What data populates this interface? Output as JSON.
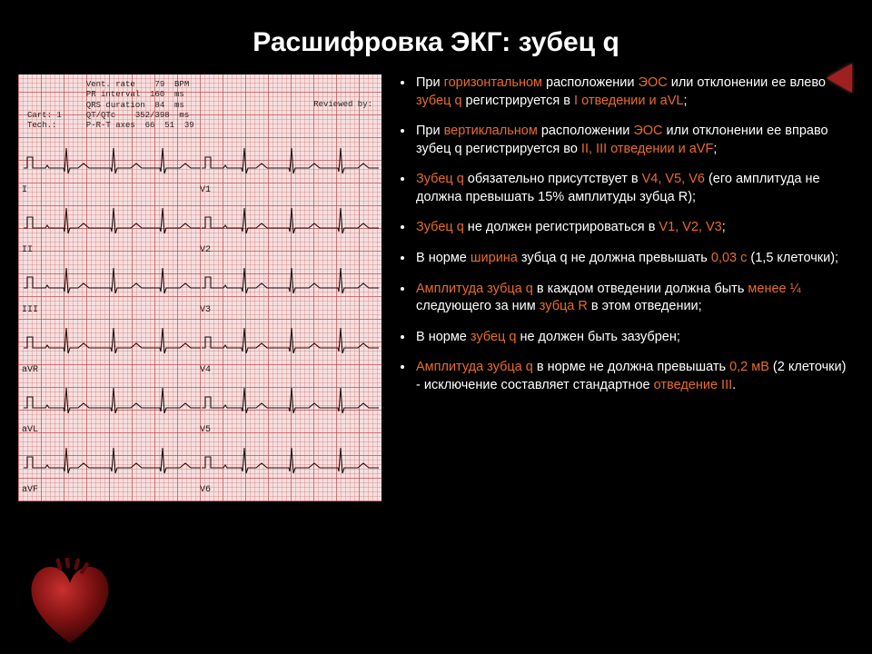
{
  "title": "Расшифровка ЭКГ: зубец q",
  "ecg": {
    "header_lines": [
      "            Vent. rate    79  BPM",
      "            PR interval  160  ms",
      "            QRS duration  84  ms",
      "Cart: 1     QT/QTc    352/398  ms",
      "Tech.:      P-R-T axes  66  51  39"
    ],
    "reviewed": "Reviewed by:",
    "rows": [
      {
        "left": "I",
        "right": "V1"
      },
      {
        "left": "II",
        "right": "V2"
      },
      {
        "left": "III",
        "right": "V3"
      },
      {
        "left": "aVR",
        "right": "V4"
      },
      {
        "left": "aVL",
        "right": "V5"
      },
      {
        "left": "aVF",
        "right": "V6"
      }
    ],
    "grid_minor_color": "rgba(200,80,80,0.28)",
    "grid_major_color": "rgba(180,50,50,0.55)",
    "paper_bg": "#f5e0e0",
    "trace_color": "#201010"
  },
  "bullets": [
    {
      "segments": [
        {
          "t": "При "
        },
        {
          "t": "горизонтальном",
          "hl": true
        },
        {
          "t": " расположении "
        },
        {
          "t": "ЭОС",
          "hl": true
        },
        {
          "t": " или отклонении ее влево "
        },
        {
          "t": "зубец q",
          "hl": true
        },
        {
          "t": " регистрируется в "
        },
        {
          "t": "I отведении и aVL",
          "hl": true
        },
        {
          "t": ";"
        }
      ]
    },
    {
      "segments": [
        {
          "t": "При "
        },
        {
          "t": "вертиклальном",
          "hl": true
        },
        {
          "t": " расположении "
        },
        {
          "t": "ЭОС",
          "hl": true
        },
        {
          "t": " или отклонении ее вправо зубец q регистрируется во "
        },
        {
          "t": "II, III отведении и aVF",
          "hl": true
        },
        {
          "t": ";"
        }
      ]
    },
    {
      "segments": [
        {
          "t": "Зубец q",
          "hl": true
        },
        {
          "t": " обязательно присутствует в "
        },
        {
          "t": "V4, V5, V6",
          "hl": true
        },
        {
          "t": " (его амплитуда не должна превышать 15% амплитуды зубца R);"
        }
      ]
    },
    {
      "segments": [
        {
          "t": "Зубец q",
          "hl": true
        },
        {
          "t": " не должен регистрироваться в "
        },
        {
          "t": "V1, V2, V3",
          "hl": true
        },
        {
          "t": ";"
        }
      ]
    },
    {
      "segments": [
        {
          "t": "В норме "
        },
        {
          "t": "ширина",
          "hl": true
        },
        {
          "t": " зубца q не должна превышать "
        },
        {
          "t": "0,03 с",
          "hl": true
        },
        {
          "t": " (1,5 клеточки);"
        }
      ]
    },
    {
      "segments": [
        {
          "t": "Амплитуда зубца q",
          "hl": true
        },
        {
          "t": " в каждом отведении должна быть "
        },
        {
          "t": "менее ¼",
          "hl": true
        },
        {
          "t": " следующего за ним "
        },
        {
          "t": "зубца R",
          "hl": true
        },
        {
          "t": " в этом отведении;"
        }
      ]
    },
    {
      "segments": [
        {
          "t": "В норме "
        },
        {
          "t": "зубец q",
          "hl": true
        },
        {
          "t": " не должен быть зазубрен;"
        }
      ]
    },
    {
      "segments": [
        {
          "t": "Амплитуда зубца q",
          "hl": true
        },
        {
          "t": " в норме не должна превышать "
        },
        {
          "t": "0,2 мВ",
          "hl": true
        },
        {
          "t": " (2 клеточки) - исключение составляет стандартное "
        },
        {
          "t": "отведение III",
          "hl": true
        },
        {
          "t": "."
        }
      ]
    }
  ],
  "colors": {
    "bg": "#000000",
    "text": "#ffffff",
    "highlight": "#e86c2a",
    "nav_arrow": "#a02020",
    "heart_fill": "#7a1010",
    "heart_dark": "#3a0606"
  },
  "typography": {
    "title_fontsize": 30,
    "body_fontsize": 14.5,
    "ecg_label_fontsize": 9
  }
}
